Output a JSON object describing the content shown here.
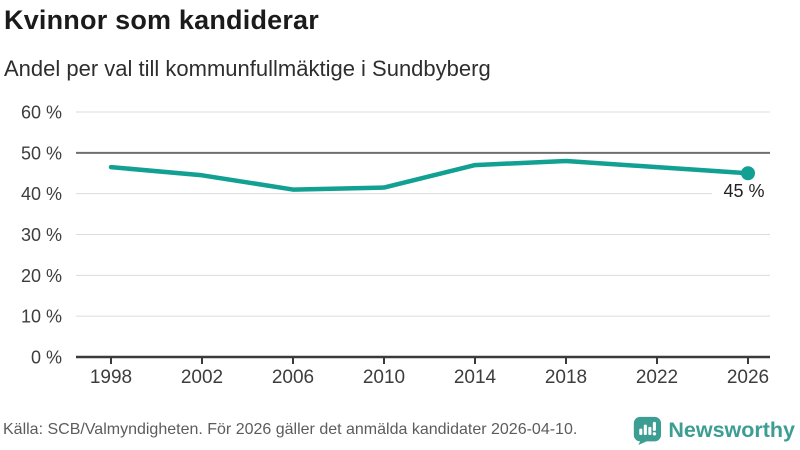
{
  "header": {
    "title": "Kvinnor som kandiderar",
    "subtitle": "Andel per val till kommunfullmäktige i Sundbyberg"
  },
  "chart_data": {
    "type": "line",
    "title": "Kvinnor som kandiderar",
    "subtitle": "Andel per val till kommunfullmäktige i Sundbyberg",
    "categories": [
      "1998",
      "2002",
      "2006",
      "2010",
      "2014",
      "2018",
      "2022",
      "2026"
    ],
    "values": [
      46.5,
      44.5,
      41,
      41.5,
      47,
      48,
      46.5,
      45
    ],
    "unit": "%",
    "ylim": [
      0,
      60
    ],
    "ytick_step": 10,
    "ytick_suffix": " %",
    "emphasized_gridline": 50,
    "grid": true,
    "legend": "none",
    "end_point_label": "45 %",
    "line_color": "#12A092"
  },
  "footer": {
    "source": "Källa: SCB/Valmyndigheten. För 2026 gäller det anmälda kandidater 2026-04-10.",
    "brand": "Newsworthy"
  },
  "colors": {
    "accent": "#12A092",
    "brand": "#3C9E93",
    "grid_light": "#DCDCDC",
    "grid_emphasis": "#6F6F6F",
    "axis": "#3A3A3A",
    "tick_text": "#3D3D3D",
    "label_text": "#222222"
  }
}
